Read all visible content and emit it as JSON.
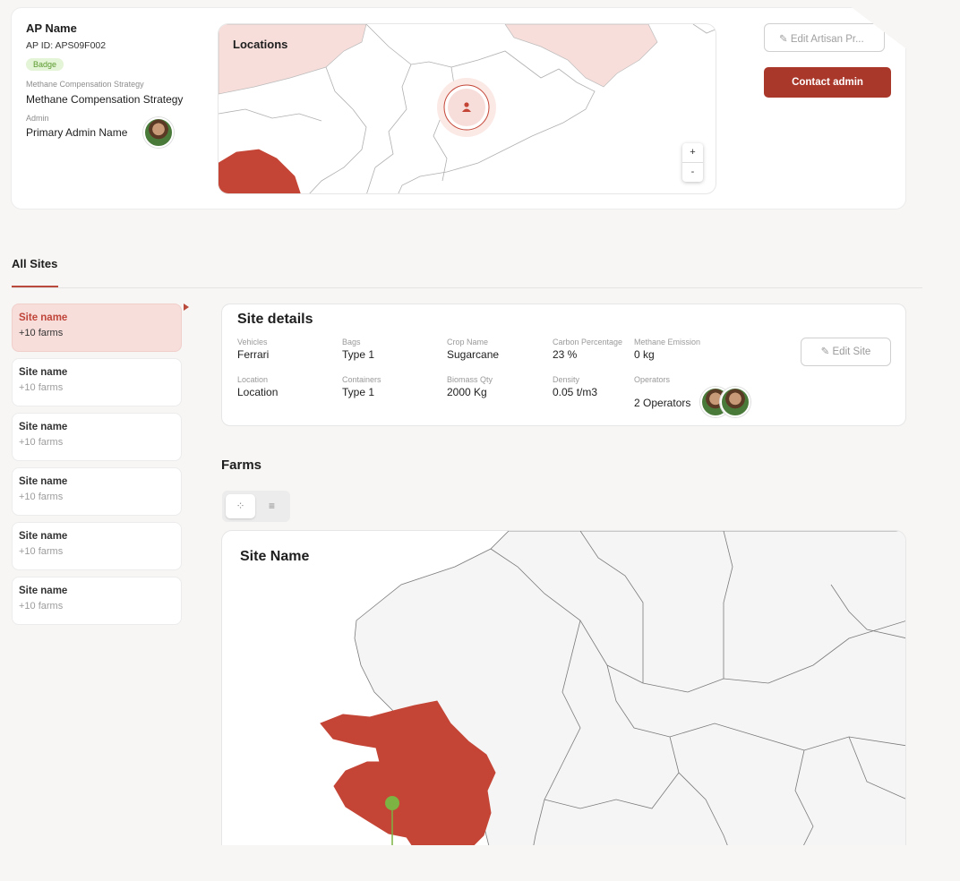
{
  "header": {
    "ap_name": "AP Name",
    "ap_id": "AP ID: APS09F002",
    "badge": "Badge",
    "strategy_label": "Methane Compensation Strategy",
    "strategy_value": "Methane Compensation Strategy",
    "admin_label": "Admin",
    "admin_value": "Primary Admin Name"
  },
  "locations_map": {
    "title": "Locations",
    "zoom_in": "+",
    "zoom_out": "-"
  },
  "actions": {
    "edit_label": "Edit Artisan Pr...",
    "contact_label": "Contact admin"
  },
  "sites": {
    "title": "All Sites",
    "items": [
      {
        "name": "Site name",
        "farms": "+10 farms"
      },
      {
        "name": "Site name",
        "farms": "+10 farms"
      },
      {
        "name": "Site name",
        "farms": "+10 farms"
      },
      {
        "name": "Site name",
        "farms": "+10 farms"
      },
      {
        "name": "Site name",
        "farms": "+10 farms"
      },
      {
        "name": "Site name",
        "farms": "+10 farms"
      }
    ]
  },
  "site_details": {
    "title": "Site details",
    "fields": {
      "vehicles": {
        "label": "Vehicles",
        "value": "Ferrari"
      },
      "bags": {
        "label": "Bags",
        "value": "Type 1"
      },
      "crop": {
        "label": "Crop Name",
        "value": "Sugarcane"
      },
      "carbon": {
        "label": "Carbon Percentage",
        "value": "23 %"
      },
      "methane": {
        "label": "Methane Emission",
        "value": "0 kg"
      },
      "location": {
        "label": "Location",
        "value": "Location"
      },
      "containers": {
        "label": "Containers",
        "value": "Type 1"
      },
      "biomass": {
        "label": "Biomass Qty",
        "value": "2000 Kg"
      },
      "density": {
        "label": "Density",
        "value": "0.05 t/m3"
      },
      "operators": {
        "label": "Operators",
        "value": "2 Operators"
      }
    },
    "edit_label": "Edit Site"
  },
  "farms": {
    "title": "Farms",
    "map_title": "Site Name"
  },
  "colors": {
    "accent": "#a9372a",
    "highlight_region": "#c44536",
    "badge_bg": "#e4f4d6",
    "marker": "#7cb342"
  }
}
